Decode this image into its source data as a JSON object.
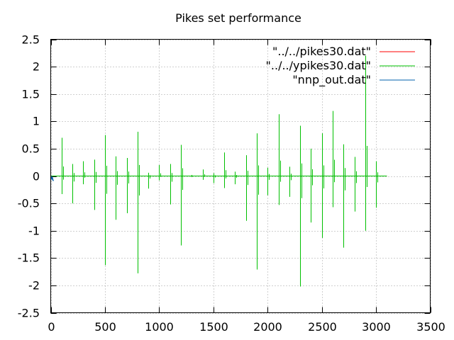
{
  "chart_data": {
    "type": "line",
    "title": "Pikes set performance",
    "xlabel": "",
    "ylabel": "",
    "xlim": [
      0,
      3500
    ],
    "ylim": [
      -2.5,
      2.5
    ],
    "x_ticks": [
      0,
      500,
      1000,
      1500,
      2000,
      2500,
      3000,
      3500
    ],
    "x_tick_labels": [
      "0",
      "500",
      "1000",
      "1500",
      "2000",
      "2500",
      "3000",
      "3500"
    ],
    "y_ticks": [
      2.5,
      2,
      1.5,
      1,
      0.5,
      0,
      -0.5,
      -1,
      -1.5,
      -2,
      -2.5
    ],
    "y_tick_labels": [
      "2.5",
      "2",
      "1.5",
      "1",
      "0.5",
      "0",
      "-0.5",
      "-1",
      "-1.5",
      "-2",
      "-2.5"
    ],
    "grid": true,
    "legend_position": "top-right",
    "series": [
      {
        "name": "\"../../pikes30.dat\"",
        "color": "#ff0000",
        "style": "baseline",
        "x": [
          0,
          3100
        ],
        "y": [
          0,
          0
        ]
      },
      {
        "name": "\"../../ypikes30.dat\"",
        "color": "#00c000",
        "style": "spikes",
        "spikes": [
          {
            "x": 100,
            "hi": 0.7,
            "lo": -0.33
          },
          {
            "x": 200,
            "hi": 0.22,
            "lo": -0.5
          },
          {
            "x": 300,
            "hi": 0.27,
            "lo": -0.15
          },
          {
            "x": 400,
            "hi": 0.3,
            "lo": -0.62
          },
          {
            "x": 500,
            "hi": 0.75,
            "lo": -1.63
          },
          {
            "x": 600,
            "hi": 0.36,
            "lo": -0.8
          },
          {
            "x": 700,
            "hi": 0.33,
            "lo": -0.68
          },
          {
            "x": 800,
            "hi": 0.81,
            "lo": -1.78
          },
          {
            "x": 900,
            "hi": 0.06,
            "lo": -0.23
          },
          {
            "x": 1000,
            "hi": 0.2,
            "lo": -0.08
          },
          {
            "x": 1100,
            "hi": 0.22,
            "lo": -0.52
          },
          {
            "x": 1200,
            "hi": 0.57,
            "lo": -1.27
          },
          {
            "x": 1300,
            "hi": 0.02,
            "lo": -0.02
          },
          {
            "x": 1400,
            "hi": 0.12,
            "lo": -0.07
          },
          {
            "x": 1500,
            "hi": 0.05,
            "lo": -0.13
          },
          {
            "x": 1600,
            "hi": 0.43,
            "lo": -0.22
          },
          {
            "x": 1700,
            "hi": 0.08,
            "lo": -0.15
          },
          {
            "x": 1800,
            "hi": 0.38,
            "lo": -0.82
          },
          {
            "x": 1900,
            "hi": 0.78,
            "lo": -1.71
          },
          {
            "x": 2000,
            "hi": 0.15,
            "lo": -0.35
          },
          {
            "x": 2100,
            "hi": 1.13,
            "lo": -0.53
          },
          {
            "x": 2200,
            "hi": 0.17,
            "lo": -0.38
          },
          {
            "x": 2300,
            "hi": 0.92,
            "lo": -2.02
          },
          {
            "x": 2400,
            "hi": 0.5,
            "lo": -0.85
          },
          {
            "x": 2500,
            "hi": 0.78,
            "lo": -1.13
          },
          {
            "x": 2600,
            "hi": 1.19,
            "lo": -0.57
          },
          {
            "x": 2700,
            "hi": 0.58,
            "lo": -1.31
          },
          {
            "x": 2800,
            "hi": 0.35,
            "lo": -0.65
          },
          {
            "x": 2900,
            "hi": 2.2,
            "lo": -1.0
          },
          {
            "x": 3000,
            "hi": 0.27,
            "lo": -0.58
          }
        ],
        "baseline_x": [
          0,
          3100
        ]
      },
      {
        "name": "\"nnp_out.dat\"",
        "color": "#0060ad",
        "style": "line",
        "x": [
          0,
          5,
          10,
          15,
          20,
          25
        ],
        "y": [
          0.0,
          -0.02,
          -0.05,
          -0.03,
          -0.07,
          -0.09
        ]
      }
    ]
  }
}
